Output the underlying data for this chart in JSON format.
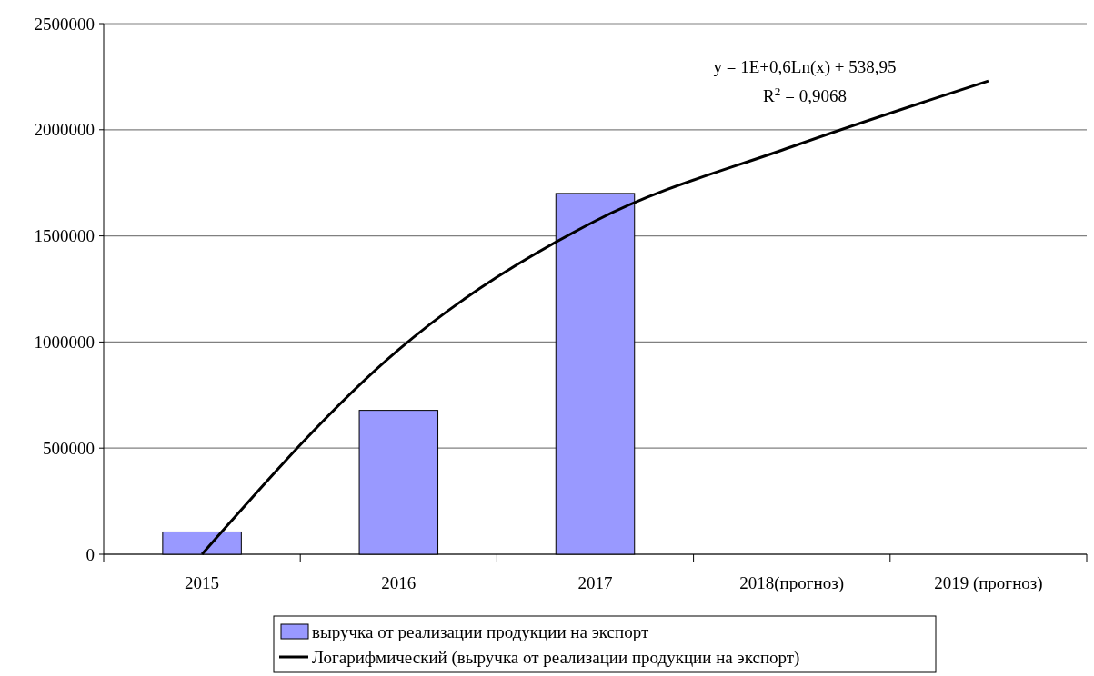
{
  "chart_data": {
    "type": "bar",
    "categories": [
      "2015",
      "2016",
      "2017",
      "2018(прогноз)",
      "2019 (прогноз)"
    ],
    "series": [
      {
        "name": "выручка от реализации продукции на экспорт",
        "color": "#9999ff",
        "values": [
          105000,
          678000,
          1700000,
          null,
          null
        ]
      },
      {
        "name": "Логарифмический (выручка от реализации продукции на экспорт)",
        "type": "line",
        "color": "#000000",
        "values": [
          0,
          964000,
          1570000,
          1920000,
          2230000
        ]
      }
    ],
    "ylim": [
      0,
      2500000
    ],
    "yticks": [
      0,
      500000,
      1000000,
      1500000,
      2000000,
      2500000
    ],
    "grid": "y",
    "legend": "bottom",
    "marker": "none",
    "annotations": [
      "y = 1E+0,6Ln(x) + 538,95",
      "R$^{2}$ = 0,9068"
    ]
  }
}
